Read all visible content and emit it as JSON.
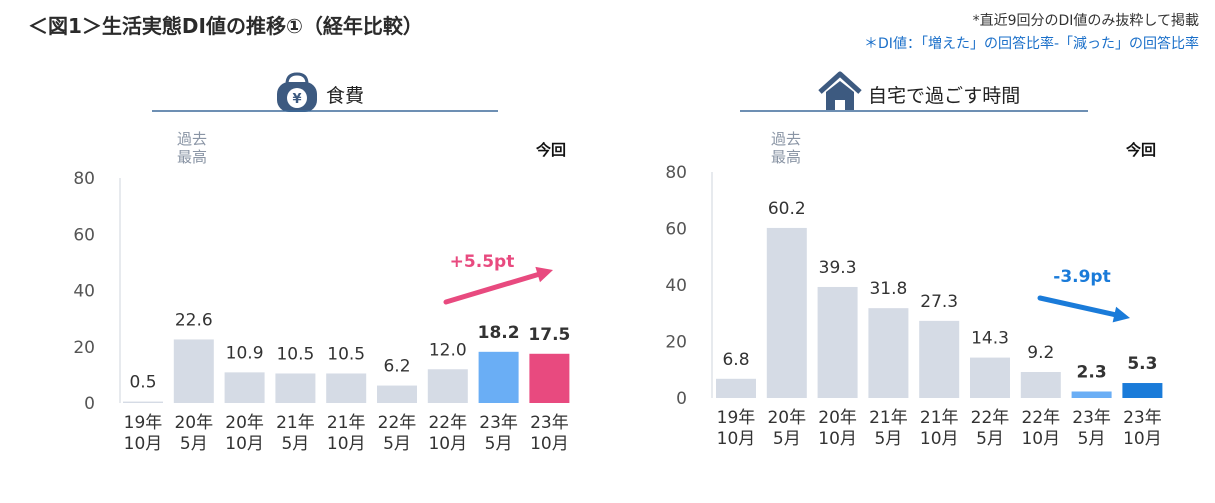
{
  "title": "＜図1＞生活実態DI値の推移①（経年比較）",
  "notes": {
    "line1": "*直近9回分のDI値のみ抜粋して掲載",
    "line2": "＊DI値：「増えた」の回答比率-「減った」の回答比率"
  },
  "colors": {
    "bar_default": "#d5dbe5",
    "bar_prev": "#6aaef5",
    "food_current": "#e84a7f",
    "home_current": "#1a7bd9",
    "food_arrow": "#e84a7f",
    "home_arrow": "#1a7bd9",
    "icon": "#3d5a80"
  },
  "chart_data": [
    {
      "type": "bar",
      "panel_title": "食費",
      "icon": "purse-yen-icon",
      "past_max_label": "過去\n最高",
      "current_label": "今回",
      "categories": [
        "19年\n10月",
        "20年\n5月",
        "20年\n10月",
        "21年\n5月",
        "21年\n10月",
        "22年\n5月",
        "22年\n10月",
        "23年\n5月",
        "23年\n10月"
      ],
      "values": [
        0.5,
        22.6,
        10.9,
        10.5,
        10.5,
        6.2,
        12.0,
        18.2,
        17.5
      ],
      "value_labels": [
        "0.5",
        "22.6",
        "10.9",
        "10.5",
        "10.5",
        "6.2",
        "12.0",
        "18.2",
        "17.5"
      ],
      "ylim": [
        0,
        80
      ],
      "yticks": [
        0,
        20,
        40,
        60,
        80
      ],
      "change_label": "+5.5pt"
    },
    {
      "type": "bar",
      "panel_title": "自宅で過ごす時間",
      "icon": "house-icon",
      "past_max_label": "過去\n最高",
      "current_label": "今回",
      "categories": [
        "19年\n10月",
        "20年\n5月",
        "20年\n10月",
        "21年\n5月",
        "21年\n10月",
        "22年\n5月",
        "22年\n10月",
        "23年\n5月",
        "23年\n10月"
      ],
      "values": [
        6.8,
        60.2,
        39.3,
        31.8,
        27.3,
        14.3,
        9.2,
        2.3,
        5.3
      ],
      "value_labels": [
        "6.8",
        "60.2",
        "39.3",
        "31.8",
        "27.3",
        "14.3",
        "9.2",
        "2.3",
        "5.3"
      ],
      "ylim": [
        0,
        80
      ],
      "yticks": [
        0,
        20,
        40,
        60,
        80
      ],
      "change_label": "-3.9pt"
    }
  ]
}
